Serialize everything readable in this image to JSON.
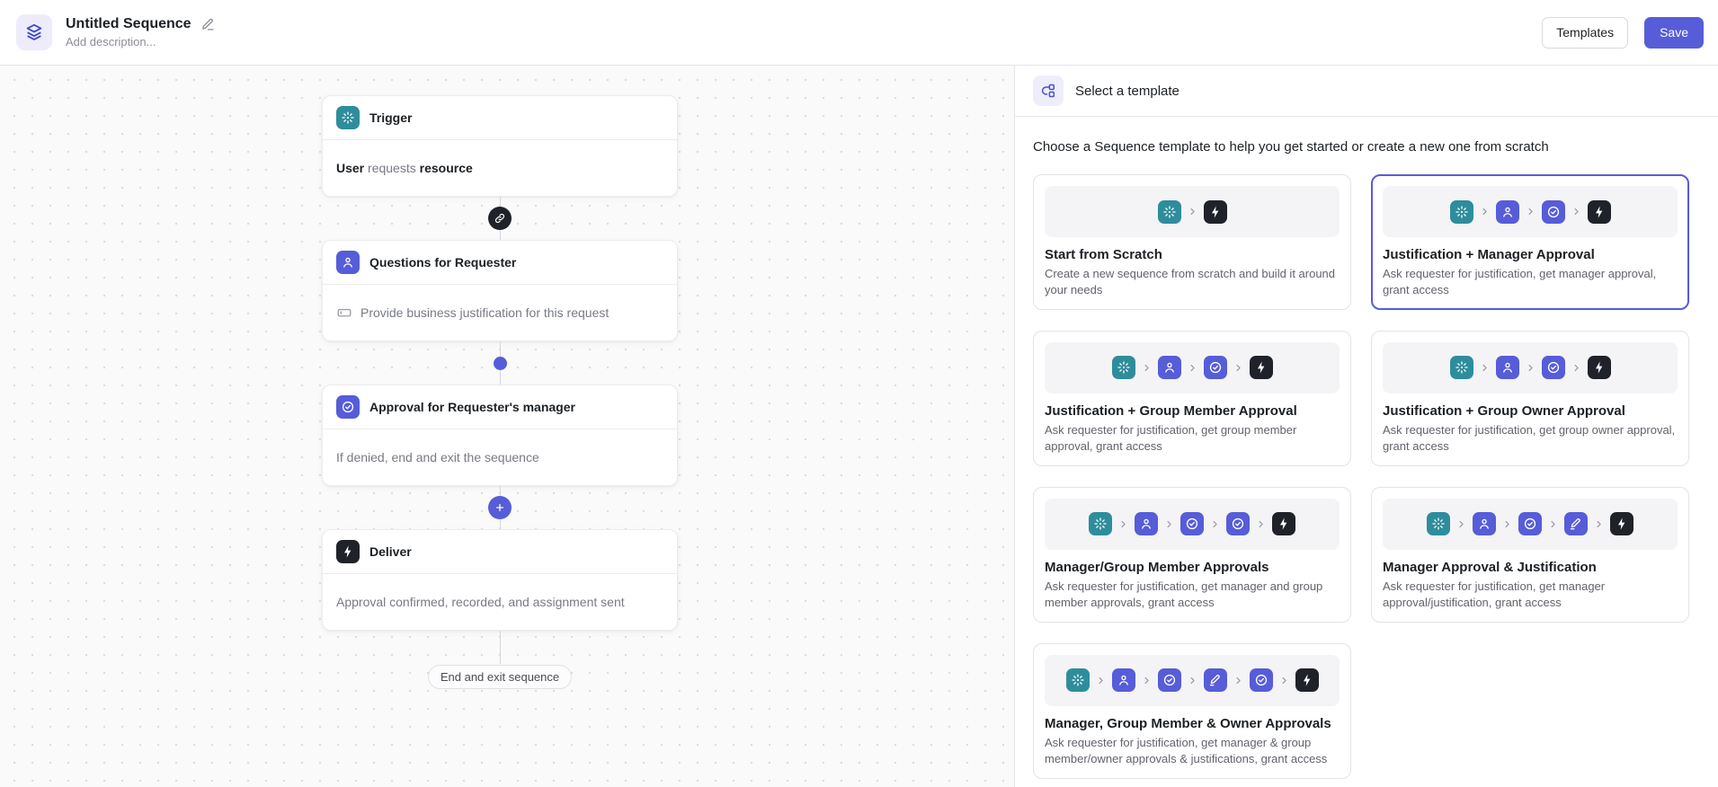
{
  "header": {
    "title": "Untitled Sequence",
    "description_placeholder": "Add description...",
    "templates_label": "Templates",
    "save_label": "Save"
  },
  "canvas": {
    "nodes": [
      {
        "title": "Trigger",
        "body_bold_1": "User",
        "body_plain": " requests ",
        "body_bold_2": "resource"
      },
      {
        "title": "Questions for Requester",
        "body": "Provide business justification for this request"
      },
      {
        "title": "Approval for Requester's manager",
        "body": "If denied, end and exit the sequence"
      },
      {
        "title": "Deliver",
        "body": "Approval confirmed, recorded, and assignment sent"
      }
    ],
    "end_label": "End and exit sequence"
  },
  "panel": {
    "title": "Select a template",
    "description": "Choose a Sequence template to help you get started or create a new one from scratch",
    "cards": [
      {
        "title": "Start from Scratch",
        "description": "Create a new sequence from scratch and build it around your needs",
        "icons": [
          "trigger",
          "deliver"
        ],
        "selected": false
      },
      {
        "title": "Justification + Manager Approval",
        "description": "Ask requester for justification, get manager approval, grant access",
        "icons": [
          "trigger",
          "user",
          "approval",
          "deliver"
        ],
        "selected": true
      },
      {
        "title": "Justification + Group Member Approval",
        "description": "Ask requester for justification, get group member approval, grant access",
        "icons": [
          "trigger",
          "user",
          "approval",
          "deliver"
        ],
        "selected": false
      },
      {
        "title": "Justification + Group Owner Approval",
        "description": "Ask requester for justification, get group owner approval, grant access",
        "icons": [
          "trigger",
          "user",
          "approval",
          "deliver"
        ],
        "selected": false
      },
      {
        "title": "Manager/Group Member Approvals",
        "description": "Ask requester for justification, get manager and group member approvals, grant access",
        "icons": [
          "trigger",
          "user",
          "approval",
          "approval",
          "deliver"
        ],
        "selected": false
      },
      {
        "title": "Manager Approval & Justification",
        "description": "Ask requester for justification, get manager approval/justification, grant access",
        "icons": [
          "trigger",
          "user",
          "approval",
          "pen",
          "deliver"
        ],
        "selected": false
      },
      {
        "title": "Manager, Group Member & Owner Approvals",
        "description": "Ask requester for justification, get manager & group member/owner approvals & justifications, grant access",
        "icons": [
          "trigger",
          "user",
          "approval",
          "pen",
          "approval",
          "deliver"
        ],
        "selected": false
      }
    ]
  },
  "colors": {
    "teal": "#2E8D9C",
    "indigo": "#575CD8",
    "dark": "#1F2228",
    "selected_border": "#575CD8",
    "canvas_dot": "#DCDCE1"
  }
}
